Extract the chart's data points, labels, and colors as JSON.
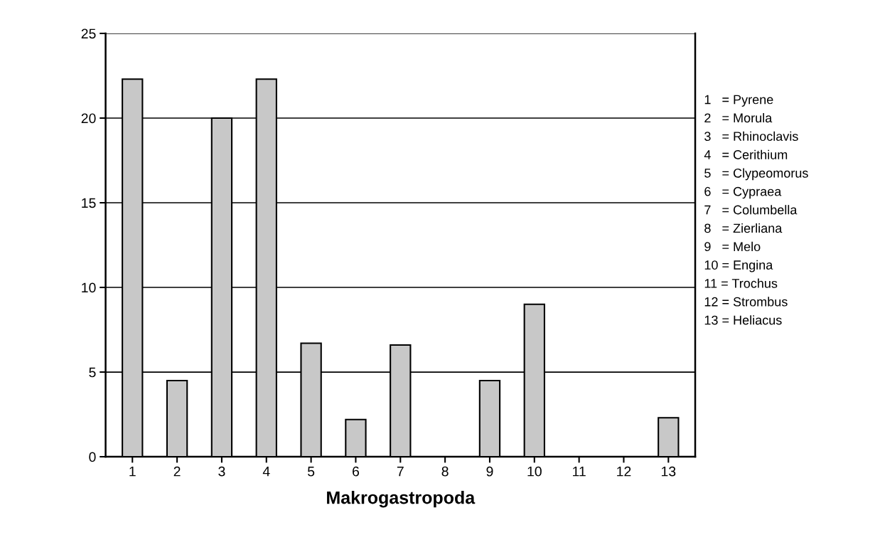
{
  "chart_data": {
    "type": "bar",
    "xlabel": "Makrogastropoda",
    "categories": [
      "1",
      "2",
      "3",
      "4",
      "5",
      "6",
      "7",
      "8",
      "9",
      "10",
      "11",
      "12",
      "13"
    ],
    "values": [
      22.3,
      4.5,
      20,
      22.3,
      6.7,
      2.2,
      6.6,
      0,
      4.5,
      9,
      0,
      0,
      2.3
    ],
    "color": "#c8c8c8",
    "ylim": [
      0,
      25
    ],
    "yticks": [
      0,
      5,
      10,
      15,
      20,
      25
    ],
    "grid": "y",
    "annotations": [
      "1   = Pyrene",
      "2   = Morula",
      "3   = Rhinoclavis",
      "4   = Cerithium",
      "5   = Clypeomorus",
      "6   = Cypraea",
      "7   = Columbella",
      "8   = Zierliana",
      "9   = Melo",
      "10 = Engina",
      "11 = Trochus",
      "12 = Strombus",
      "13 = Heliacus"
    ]
  }
}
